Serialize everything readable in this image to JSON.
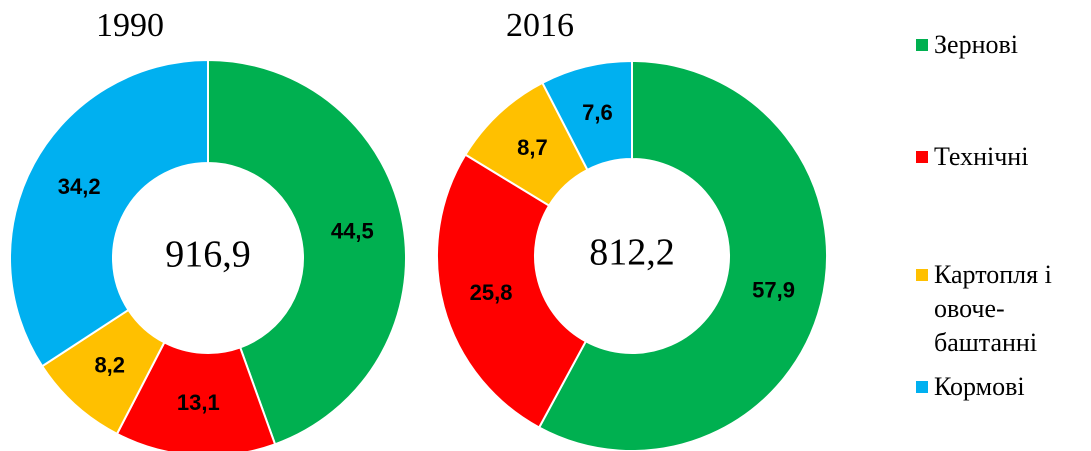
{
  "chart_data": [
    {
      "type": "donut",
      "title": "1990",
      "categories": [
        "Зернові",
        "Технічні",
        "Картопля і овоче-баштанні",
        "Кормові"
      ],
      "values": [
        44.5,
        13.1,
        8.2,
        34.2
      ],
      "value_labels": [
        "44,5",
        "13,1",
        "8,2",
        "34,2"
      ],
      "colors": [
        "#00b050",
        "#ff0000",
        "#ffc000",
        "#00b0f0"
      ],
      "center_label": "916,9"
    },
    {
      "type": "donut",
      "title": "2016",
      "categories": [
        "Зернові",
        "Технічні",
        "Картопля і овоче-баштанні",
        "Кормові"
      ],
      "values": [
        57.9,
        25.8,
        8.7,
        7.6
      ],
      "value_labels": [
        "57,9",
        "25,8",
        "8,7",
        "7,6"
      ],
      "colors": [
        "#00b050",
        "#ff0000",
        "#ffc000",
        "#00b0f0"
      ],
      "center_label": "812,2"
    }
  ]
}
